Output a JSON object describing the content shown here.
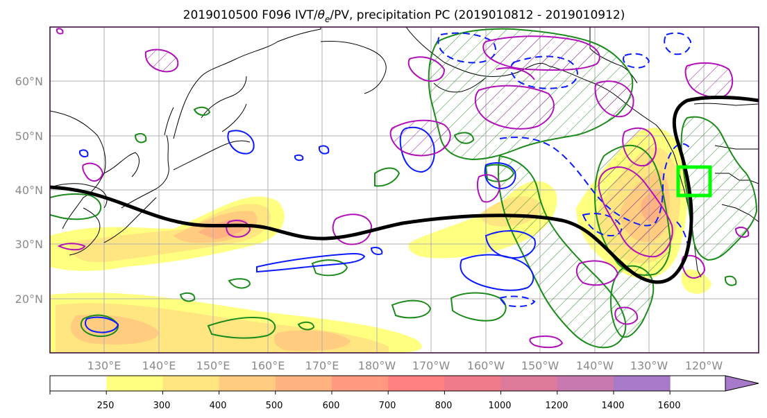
{
  "title": {
    "prefix": "2019010500 F096 IVT/",
    "theta": "θ",
    "theta_sub": "e",
    "suffix": "/PV, precipitation PC (2019010812 - 2019010912)"
  },
  "lat_labels": [
    "60°N",
    "50°N",
    "40°N",
    "30°N",
    "20°N"
  ],
  "lon_labels": [
    "130°E",
    "140°E",
    "150°E",
    "160°E",
    "170°E",
    "180°W",
    "170°W",
    "160°W",
    "150°W",
    "140°W",
    "130°W",
    "120°W"
  ],
  "colorbar": {
    "ticks": [
      "250",
      "300",
      "400",
      "500",
      "600",
      "700",
      "800",
      "1000",
      "1200",
      "1400",
      "1600"
    ],
    "colors": [
      "#ffffff",
      "#ffff80",
      "#ffe680",
      "#ffcc80",
      "#ffb380",
      "#ff9980",
      "#ff8080",
      "#ee7a8a",
      "#dd7a99",
      "#c87ab0",
      "#a67ac8"
    ]
  },
  "map": {
    "extent_lon": [
      120,
      250
    ],
    "extent_lat": [
      10,
      70
    ],
    "ivt_colormap": [
      "#ffff80",
      "#ffe680",
      "#ffcc80",
      "#ffb380"
    ],
    "theta_e_contour_color": "#000000",
    "pv_positive_color": "#0000ff",
    "precip_contour_color": "#007700",
    "pc_contour_color": "#aa00aa",
    "highlight_box_color": "#00ff00"
  }
}
